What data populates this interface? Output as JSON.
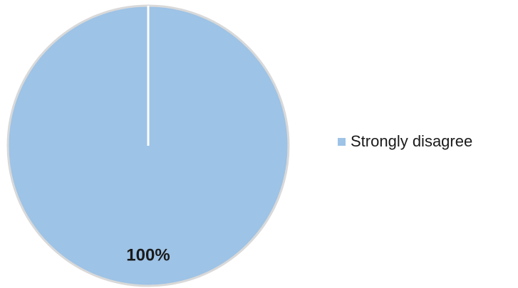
{
  "chart_data": {
    "type": "pie",
    "categories": [
      "Strongly disagree"
    ],
    "values": [
      100
    ],
    "data_labels": [
      "100%"
    ],
    "title": "",
    "legend_position": "right",
    "colors": {
      "slice": "#9dc3e6",
      "slice_border": "#d9d9d9",
      "separator": "#ffffff"
    }
  }
}
